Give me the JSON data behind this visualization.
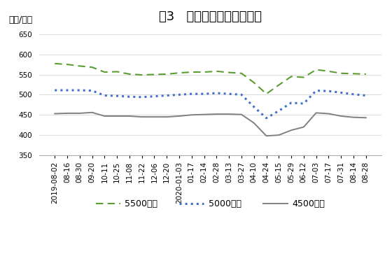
{
  "title": "图3   秦皇岛港煤炭价格情况",
  "ylabel": "（元/吨）",
  "ylim": [
    350,
    665
  ],
  "yticks": [
    350,
    400,
    450,
    500,
    550,
    600,
    650
  ],
  "x_labels": [
    "2019-08-02",
    "08-16",
    "08-30",
    "09-20",
    "10-11",
    "10-25",
    "11-08",
    "11-22",
    "12-06",
    "12-20",
    "2020-01-03",
    "01-17",
    "02-14",
    "02-28",
    "03-13",
    "03-27",
    "04-10",
    "04-24",
    "05-15",
    "05-29",
    "06-12",
    "07-03",
    "07-17",
    "07-31",
    "08-14",
    "08-28"
  ],
  "series_5500": [
    577,
    575,
    571,
    568,
    556,
    557,
    551,
    549,
    550,
    551,
    554,
    556,
    556,
    558,
    555,
    553,
    530,
    502,
    524,
    545,
    543,
    562,
    558,
    553,
    552,
    551
  ],
  "series_5000": [
    511,
    511,
    511,
    510,
    498,
    497,
    495,
    494,
    496,
    498,
    500,
    502,
    502,
    504,
    502,
    500,
    470,
    442,
    460,
    480,
    478,
    510,
    509,
    505,
    501,
    498
  ],
  "series_4500": [
    453,
    454,
    454,
    456,
    447,
    447,
    447,
    445,
    445,
    445,
    447,
    450,
    451,
    452,
    452,
    451,
    430,
    398,
    400,
    412,
    420,
    455,
    453,
    447,
    444,
    443
  ],
  "color_5500": "#5a9e32",
  "color_5000": "#4472c4",
  "color_4500": "#808080",
  "legend_labels": [
    "5500大卡",
    "5000大卡",
    "4500大卡"
  ],
  "background_color": "#ffffff",
  "title_fontsize": 13,
  "label_fontsize": 9,
  "tick_fontsize": 7.5
}
